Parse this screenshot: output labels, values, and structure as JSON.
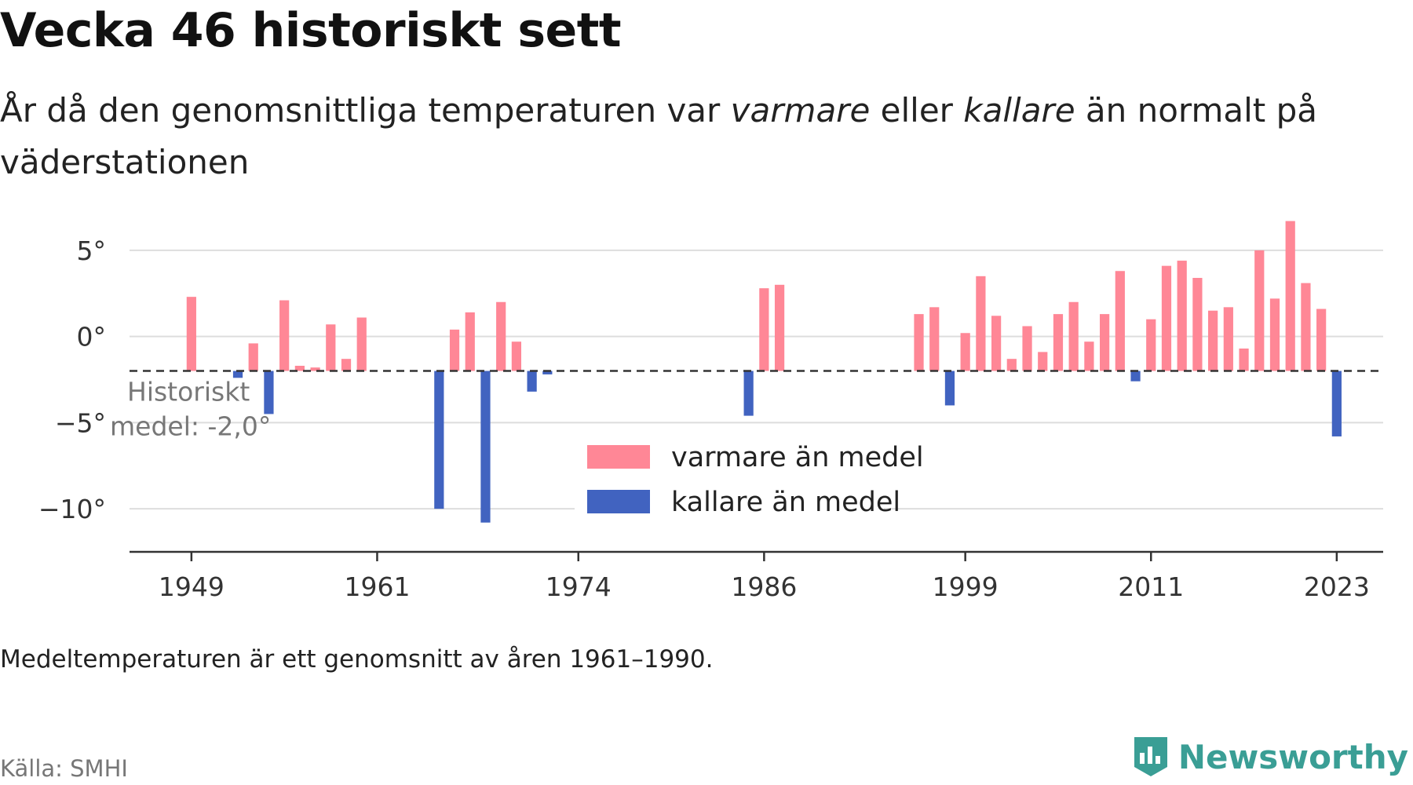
{
  "header": {
    "title": "Vecka 46 historiskt sett",
    "subtitle_part1": "År då den genomsnittliga temperaturen var ",
    "subtitle_em1": "varmare",
    "subtitle_part2": " eller ",
    "subtitle_em2": "kallare",
    "subtitle_part3": " än normalt på väderstationen"
  },
  "footer": {
    "note": "Medeltemperaturen är ett genomsnitt av åren 1961–1990.",
    "source": "Källa: SMHI",
    "brand": "Newsworthy"
  },
  "colors": {
    "warmer": "#ff8796",
    "colder": "#4163c0",
    "brand": "#3a9e95"
  },
  "chart_data": {
    "type": "bar",
    "baseline": -2.0,
    "baseline_label_line1": "Historiskt",
    "baseline_label_line2": "medel: -2,0°",
    "xlim": [
      1945,
      2026
    ],
    "ylim": [
      -12.5,
      7
    ],
    "y_ticks": [
      5,
      0,
      -5,
      -10
    ],
    "y_tick_labels": [
      "5°",
      "0°",
      "−5°",
      "−10°"
    ],
    "x_ticks": [
      1949,
      1961,
      1974,
      1986,
      1999,
      2011,
      2023
    ],
    "legend": {
      "placement": "bottom-center",
      "warmer": "varmare än medel",
      "colder": "kallare än medel"
    },
    "x": [
      1949,
      1952,
      1953,
      1954,
      1955,
      1956,
      1957,
      1958,
      1959,
      1960,
      1965,
      1966,
      1967,
      1968,
      1969,
      1970,
      1971,
      1972,
      1985,
      1986,
      1987,
      1996,
      1997,
      1998,
      1999,
      2000,
      2001,
      2002,
      2003,
      2004,
      2005,
      2006,
      2007,
      2008,
      2009,
      2010,
      2011,
      2012,
      2013,
      2014,
      2015,
      2016,
      2017,
      2018,
      2019,
      2020,
      2021,
      2022,
      2023
    ],
    "values": [
      2.3,
      -2.4,
      -0.4,
      -4.5,
      2.1,
      -1.7,
      -1.8,
      0.7,
      -1.3,
      1.1,
      -10.0,
      0.4,
      1.4,
      -10.8,
      2.0,
      -0.3,
      -3.2,
      -2.2,
      -4.6,
      2.8,
      3.0,
      1.3,
      1.7,
      -4.0,
      0.2,
      3.5,
      1.2,
      -1.3,
      0.6,
      -0.9,
      1.3,
      2.0,
      -0.3,
      1.3,
      3.8,
      -2.6,
      1.0,
      4.1,
      4.4,
      3.4,
      1.5,
      1.7,
      -0.7,
      5.0,
      2.2,
      6.7,
      3.1,
      1.6,
      -5.8
    ]
  }
}
